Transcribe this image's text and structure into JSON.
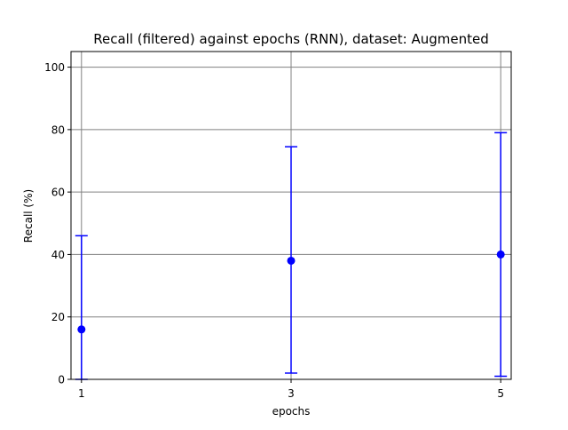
{
  "chart_data": {
    "type": "scatter",
    "title": "Recall (filtered) against epochs (RNN), dataset: Augmented",
    "xlabel": "epochs",
    "ylabel": "Recall (%)",
    "ylim": [
      0,
      105
    ],
    "xlim": [
      0.9,
      5.1
    ],
    "xticks": [
      1,
      3,
      5
    ],
    "yticks": [
      0,
      20,
      40,
      60,
      80,
      100
    ],
    "grid": true,
    "series": [
      {
        "x": [
          1,
          3,
          5
        ],
        "y": [
          16,
          38,
          40
        ],
        "err_low": [
          0,
          2,
          1
        ],
        "err_high": [
          46,
          74.5,
          79
        ],
        "color": "#0000ff"
      }
    ]
  }
}
